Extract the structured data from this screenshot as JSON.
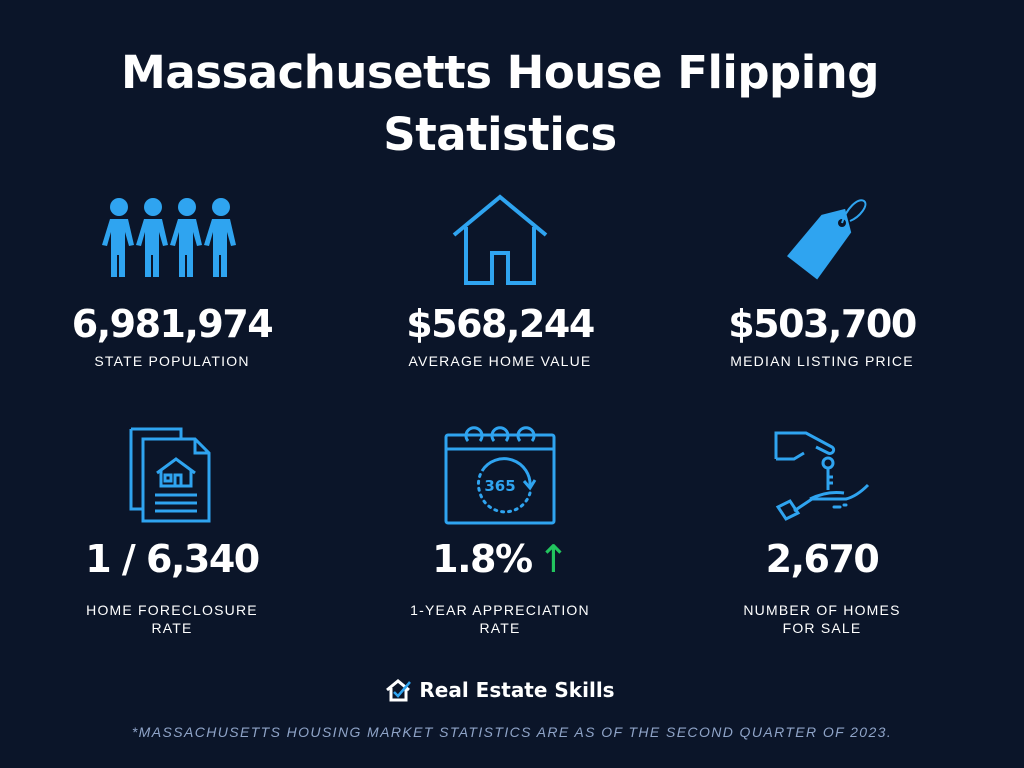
{
  "title": {
    "line1": "Massachusetts House Flipping",
    "line2": "Statistics"
  },
  "colors": {
    "background": "#0b1529",
    "icon": "#2fa4f0",
    "arrow": "#22c55e",
    "footnote": "#8fa4c8"
  },
  "stats": [
    {
      "icon": "people-icon",
      "value": "6,981,974",
      "label": "STATE POPULATION"
    },
    {
      "icon": "house-icon",
      "value": "$568,244",
      "label": "AVERAGE HOME VALUE"
    },
    {
      "icon": "price-tag-icon",
      "value": "$503,700",
      "label": "MEDIAN LISTING PRICE"
    },
    {
      "icon": "documents-icon",
      "value": "1 / 6,340",
      "label": "HOME FORECLOSURE",
      "label2": "RATE"
    },
    {
      "icon": "calendar-icon",
      "value": "1.8%",
      "arrow": "↑",
      "label": "1-YEAR APPRECIATION",
      "label2": "RATE",
      "calendar_text": "365"
    },
    {
      "icon": "key-handover-icon",
      "value": "2,670",
      "label": "NUMBER OF HOMES",
      "label2": "FOR SALE"
    }
  ],
  "logo": {
    "text": "Real Estate Skills"
  },
  "footnote": "*MASSACHUSETTS HOUSING MARKET STATISTICS ARE AS OF THE SECOND QUARTER OF 2023."
}
